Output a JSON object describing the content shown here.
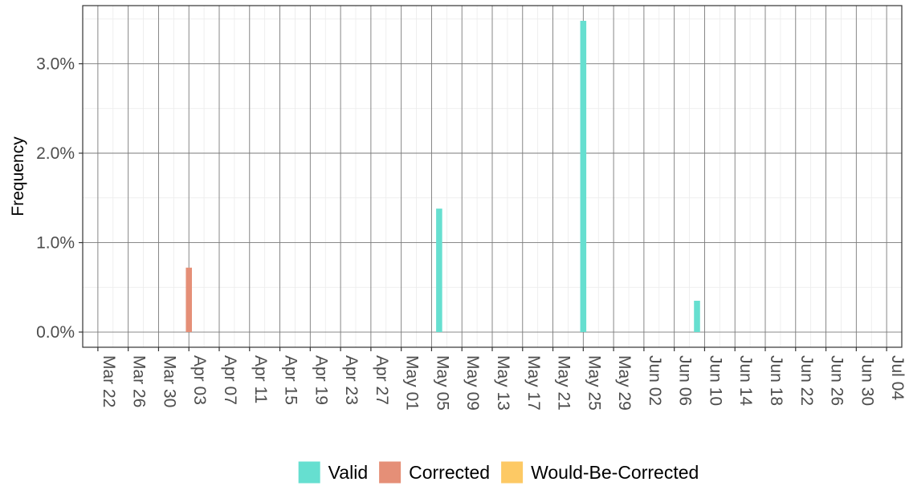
{
  "chart_data": {
    "type": "bar",
    "title": "",
    "xlabel": "",
    "ylabel": "Frequency",
    "x_axis": {
      "start_date": "2020-03-20",
      "end_date": "2020-07-06",
      "ticks": [
        {
          "date": "2020-03-22",
          "label": "Mar 22"
        },
        {
          "date": "2020-03-26",
          "label": "Mar 26"
        },
        {
          "date": "2020-03-30",
          "label": "Mar 30"
        },
        {
          "date": "2020-04-03",
          "label": "Apr 03"
        },
        {
          "date": "2020-04-07",
          "label": "Apr 07"
        },
        {
          "date": "2020-04-11",
          "label": "Apr 11"
        },
        {
          "date": "2020-04-15",
          "label": "Apr 15"
        },
        {
          "date": "2020-04-19",
          "label": "Apr 19"
        },
        {
          "date": "2020-04-23",
          "label": "Apr 23"
        },
        {
          "date": "2020-04-27",
          "label": "Apr 27"
        },
        {
          "date": "2020-05-01",
          "label": "May 01"
        },
        {
          "date": "2020-05-05",
          "label": "May 05"
        },
        {
          "date": "2020-05-09",
          "label": "May 09"
        },
        {
          "date": "2020-05-13",
          "label": "May 13"
        },
        {
          "date": "2020-05-17",
          "label": "May 17"
        },
        {
          "date": "2020-05-21",
          "label": "May 21"
        },
        {
          "date": "2020-05-25",
          "label": "May 25"
        },
        {
          "date": "2020-05-29",
          "label": "May 29"
        },
        {
          "date": "2020-06-02",
          "label": "Jun 02"
        },
        {
          "date": "2020-06-06",
          "label": "Jun 06"
        },
        {
          "date": "2020-06-10",
          "label": "Jun 10"
        },
        {
          "date": "2020-06-14",
          "label": "Jun 14"
        },
        {
          "date": "2020-06-18",
          "label": "Jun 18"
        },
        {
          "date": "2020-06-22",
          "label": "Jun 22"
        },
        {
          "date": "2020-06-26",
          "label": "Jun 26"
        },
        {
          "date": "2020-06-30",
          "label": "Jun 30"
        },
        {
          "date": "2020-07-04",
          "label": "Jul 04"
        }
      ]
    },
    "y_axis": {
      "min": -0.17,
      "max": 3.65,
      "unit": "%",
      "ticks": [
        {
          "value": 0,
          "label": "0.0%"
        },
        {
          "value": 1,
          "label": "1.0%"
        },
        {
          "value": 2,
          "label": "2.0%"
        },
        {
          "value": 3,
          "label": "3.0%"
        }
      ],
      "minor_ticks": [
        0.5,
        1.5,
        2.5,
        3.5
      ]
    },
    "grid": true,
    "legend_position": "bottom",
    "series": [
      {
        "name": "Valid",
        "color": "#66dfd0",
        "points": [
          {
            "date": "2020-05-06",
            "value": 1.38
          },
          {
            "date": "2020-05-25",
            "value": 3.48
          },
          {
            "date": "2020-06-09",
            "value": 0.35
          }
        ]
      },
      {
        "name": "Corrected",
        "color": "#e58f77",
        "points": [
          {
            "date": "2020-04-03",
            "value": 0.72
          }
        ]
      },
      {
        "name": "Would-Be-Corrected",
        "color": "#fdc964",
        "points": []
      }
    ]
  }
}
